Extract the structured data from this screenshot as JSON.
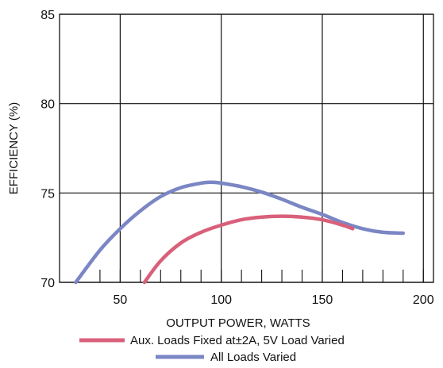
{
  "chart_data": {
    "type": "line",
    "title": "",
    "xlabel": "OUTPUT POWER, WATTS",
    "ylabel": "EFFICIENCY (%)",
    "xlim": [
      20,
      205
    ],
    "ylim": [
      70,
      85
    ],
    "xticks": [
      50,
      100,
      150,
      200
    ],
    "xtick_labels": [
      "50",
      "100",
      "150",
      "200"
    ],
    "yticks": [
      70,
      75,
      80,
      85
    ],
    "ytick_labels": [
      "70",
      "75",
      "80",
      "85"
    ],
    "x_minor_ticks": [
      40,
      50,
      60,
      70,
      80,
      90,
      100,
      110,
      120,
      130,
      140,
      150,
      160,
      170,
      180,
      190,
      200
    ],
    "grid": true,
    "legend_position": "bottom",
    "series": [
      {
        "name": "Aux. Loads Fixed at±2A, 5V Load Varied",
        "color": "#d9607a",
        "x": [
          62,
          70,
          80,
          90,
          100,
          110,
          120,
          130,
          140,
          150,
          160,
          165
        ],
        "y": [
          70.0,
          71.2,
          72.2,
          72.8,
          73.2,
          73.5,
          73.65,
          73.7,
          73.65,
          73.5,
          73.2,
          73.0
        ]
      },
      {
        "name": "All Loads Varied",
        "color": "#7b86c4",
        "x": [
          28,
          40,
          50,
          60,
          70,
          80,
          90,
          95,
          100,
          110,
          120,
          130,
          140,
          150,
          160,
          170,
          180,
          190
        ],
        "y": [
          70.0,
          71.8,
          73.0,
          74.0,
          74.8,
          75.3,
          75.55,
          75.6,
          75.55,
          75.35,
          75.05,
          74.65,
          74.2,
          73.8,
          73.35,
          73.0,
          72.8,
          72.75
        ]
      }
    ]
  }
}
